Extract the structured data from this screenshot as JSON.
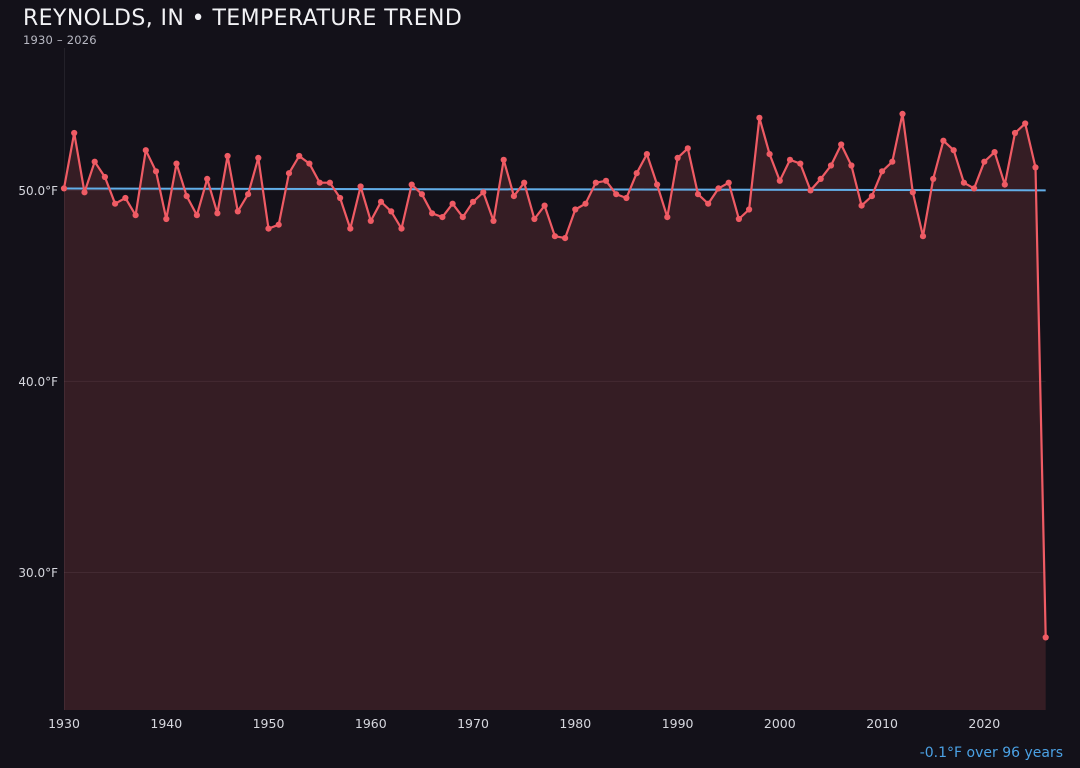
{
  "header": {
    "title": "REYNOLDS, IN • TEMPERATURE TREND",
    "subtitle": "1930 – 2026"
  },
  "footer": {
    "trend_label": "-0.1°F over 96 years"
  },
  "colors": {
    "background": "#131119",
    "line": "#ef5b64",
    "area_fill": "rgba(239,91,101,0.16)",
    "trend_line": "#62aee8",
    "footer_text": "#4ba1e4",
    "title_text": "#f2f2f5",
    "subtitle_text": "#b8b9c3",
    "tick_text": "#d6d7de",
    "gridline": "rgba(255,255,255,0.07)",
    "axis_spine": "rgba(255,255,255,0.07)"
  },
  "chart_data": {
    "type": "line",
    "title": "REYNOLDS, IN • TEMPERATURE TREND",
    "subtitle": "1930 – 2026",
    "xlabel": "",
    "ylabel": "",
    "unit": "°F",
    "xlim": [
      1930,
      2026
    ],
    "ylim": [
      22.8,
      56.3
    ],
    "grid": "horizontal-only",
    "legend": "none",
    "markers": true,
    "xticks": [
      1930,
      1940,
      1950,
      1960,
      1970,
      1980,
      1990,
      2000,
      2010,
      2020
    ],
    "yticks": [
      {
        "value": 50,
        "label": "50.0°F"
      },
      {
        "value": 40,
        "label": "40.0°F"
      },
      {
        "value": 30,
        "label": "30.0°F"
      }
    ],
    "trendline": {
      "start_value": 50.1,
      "end_value": 50.0,
      "label": "-0.1°F over 96 years"
    },
    "points": [
      [
        1930,
        50.1
      ],
      [
        1931,
        53.0
      ],
      [
        1932,
        49.9
      ],
      [
        1933,
        51.5
      ],
      [
        1934,
        50.7
      ],
      [
        1935,
        49.3
      ],
      [
        1936,
        49.6
      ],
      [
        1937,
        48.7
      ],
      [
        1938,
        52.1
      ],
      [
        1939,
        51.0
      ],
      [
        1940,
        48.5
      ],
      [
        1941,
        51.4
      ],
      [
        1942,
        49.7
      ],
      [
        1943,
        48.7
      ],
      [
        1944,
        50.6
      ],
      [
        1945,
        48.8
      ],
      [
        1946,
        51.8
      ],
      [
        1947,
        48.9
      ],
      [
        1948,
        49.8
      ],
      [
        1949,
        51.7
      ],
      [
        1950,
        48.0
      ],
      [
        1951,
        48.2
      ],
      [
        1952,
        50.9
      ],
      [
        1953,
        51.8
      ],
      [
        1954,
        51.4
      ],
      [
        1955,
        50.4
      ],
      [
        1956,
        50.4
      ],
      [
        1957,
        49.6
      ],
      [
        1958,
        48.0
      ],
      [
        1959,
        50.2
      ],
      [
        1960,
        48.4
      ],
      [
        1961,
        49.4
      ],
      [
        1962,
        48.9
      ],
      [
        1963,
        48.0
      ],
      [
        1964,
        50.3
      ],
      [
        1965,
        49.8
      ],
      [
        1966,
        48.8
      ],
      [
        1967,
        48.6
      ],
      [
        1968,
        49.3
      ],
      [
        1969,
        48.6
      ],
      [
        1970,
        49.4
      ],
      [
        1971,
        49.9
      ],
      [
        1972,
        48.4
      ],
      [
        1973,
        51.6
      ],
      [
        1974,
        49.7
      ],
      [
        1975,
        50.4
      ],
      [
        1976,
        48.5
      ],
      [
        1977,
        49.2
      ],
      [
        1978,
        47.6
      ],
      [
        1979,
        47.5
      ],
      [
        1980,
        49.0
      ],
      [
        1981,
        49.3
      ],
      [
        1982,
        50.4
      ],
      [
        1983,
        50.5
      ],
      [
        1984,
        49.8
      ],
      [
        1985,
        49.6
      ],
      [
        1986,
        50.9
      ],
      [
        1987,
        51.9
      ],
      [
        1988,
        50.3
      ],
      [
        1989,
        48.6
      ],
      [
        1990,
        51.7
      ],
      [
        1991,
        52.2
      ],
      [
        1992,
        49.8
      ],
      [
        1993,
        49.3
      ],
      [
        1994,
        50.1
      ],
      [
        1995,
        50.4
      ],
      [
        1996,
        48.5
      ],
      [
        1997,
        49.0
      ],
      [
        1998,
        53.8
      ],
      [
        1999,
        51.9
      ],
      [
        2000,
        50.5
      ],
      [
        2001,
        51.6
      ],
      [
        2002,
        51.4
      ],
      [
        2003,
        50.0
      ],
      [
        2004,
        50.6
      ],
      [
        2005,
        51.3
      ],
      [
        2006,
        52.4
      ],
      [
        2007,
        51.3
      ],
      [
        2008,
        49.2
      ],
      [
        2009,
        49.7
      ],
      [
        2010,
        51.0
      ],
      [
        2011,
        51.5
      ],
      [
        2012,
        54.0
      ],
      [
        2013,
        49.9
      ],
      [
        2014,
        47.6
      ],
      [
        2015,
        50.6
      ],
      [
        2016,
        52.6
      ],
      [
        2017,
        52.1
      ],
      [
        2018,
        50.4
      ],
      [
        2019,
        50.1
      ],
      [
        2020,
        51.5
      ],
      [
        2021,
        52.0
      ],
      [
        2022,
        50.3
      ],
      [
        2023,
        53.0
      ],
      [
        2024,
        53.5
      ],
      [
        2025,
        51.2
      ],
      [
        2026,
        26.6
      ]
    ]
  }
}
